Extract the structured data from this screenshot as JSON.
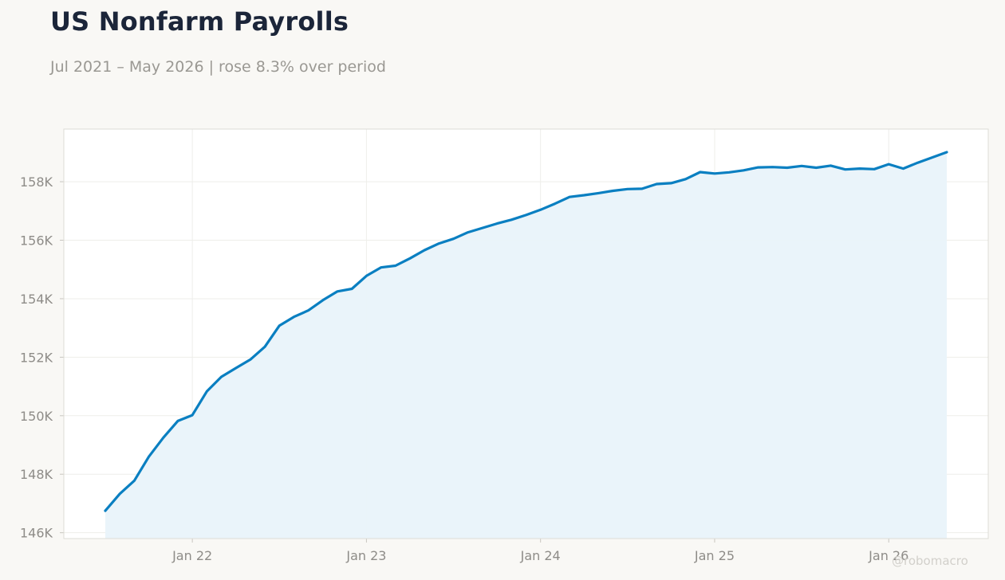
{
  "header": {
    "title": "US Nonfarm Payrolls",
    "subtitle": "Jul 2021 – May 2026 | rose 8.3% over period"
  },
  "watermark": "@robomacro",
  "colors": {
    "line": "#0a7fc1",
    "area": "#e9f3fa",
    "grid": "#eeeeea",
    "frame": "#dddcd6",
    "plot_bg": "#ffffff"
  },
  "chart_data": {
    "type": "area",
    "title": "US Nonfarm Payrolls",
    "subtitle": "Jul 2021 – May 2026 | rose 8.3% over period",
    "xlabel": "",
    "ylabel": "",
    "x_start": "2021-07",
    "x_end": "2026-05",
    "ylim": [
      145800,
      159800
    ],
    "grid": true,
    "yticks": [
      {
        "value": 146000,
        "label": "146K"
      },
      {
        "value": 148000,
        "label": "148K"
      },
      {
        "value": 150000,
        "label": "150K"
      },
      {
        "value": 152000,
        "label": "152K"
      },
      {
        "value": 154000,
        "label": "154K"
      },
      {
        "value": 156000,
        "label": "156K"
      },
      {
        "value": 158000,
        "label": "158K"
      }
    ],
    "xticks": [
      {
        "date": "2022-01",
        "label": "Jan 22"
      },
      {
        "date": "2023-01",
        "label": "Jan 23"
      },
      {
        "date": "2024-01",
        "label": "Jan 24"
      },
      {
        "date": "2025-01",
        "label": "Jan 25"
      },
      {
        "date": "2026-01",
        "label": "Jan 26"
      }
    ],
    "series": [
      {
        "x": [
          "2021-07",
          "2021-08",
          "2021-09",
          "2021-10",
          "2021-11",
          "2021-12",
          "2022-01",
          "2022-02",
          "2022-03",
          "2022-04",
          "2022-05",
          "2022-06",
          "2022-07",
          "2022-08",
          "2022-09",
          "2022-10",
          "2022-11",
          "2022-12",
          "2023-01",
          "2023-02",
          "2023-03",
          "2023-04",
          "2023-05",
          "2023-06",
          "2023-07",
          "2023-08",
          "2023-09",
          "2023-10",
          "2023-11",
          "2023-12",
          "2024-01",
          "2024-02",
          "2024-03",
          "2024-04",
          "2024-05",
          "2024-06",
          "2024-07",
          "2024-08",
          "2024-09",
          "2024-10",
          "2024-11",
          "2024-12",
          "2025-01",
          "2025-02",
          "2025-03",
          "2025-04",
          "2025-05",
          "2025-06",
          "2025-07",
          "2025-08",
          "2025-09",
          "2025-10",
          "2025-11",
          "2025-12",
          "2026-01",
          "2026-02",
          "2026-03",
          "2026-04",
          "2026-05"
        ],
        "values": [
          146750,
          147330,
          147780,
          148600,
          149250,
          149820,
          150020,
          150830,
          151330,
          151630,
          151920,
          152360,
          153080,
          153380,
          153600,
          153950,
          154250,
          154340,
          154780,
          155070,
          155130,
          155380,
          155660,
          155890,
          156050,
          156270,
          156420,
          156570,
          156700,
          156860,
          157040,
          157250,
          157480,
          157540,
          157610,
          157690,
          157750,
          157760,
          157920,
          157950,
          158090,
          158330,
          158280,
          158320,
          158390,
          158490,
          158500,
          158480,
          158540,
          158480,
          158550,
          158420,
          158450,
          158430,
          158600,
          158450,
          158650,
          158830,
          159010
        ]
      }
    ]
  }
}
